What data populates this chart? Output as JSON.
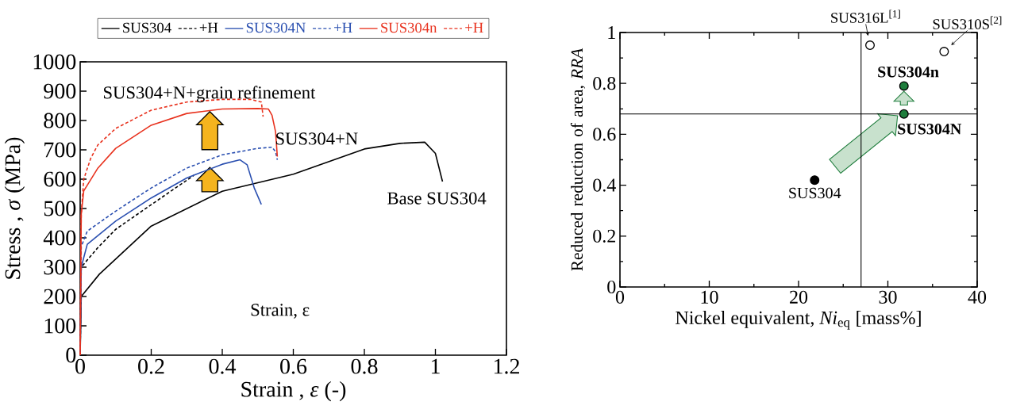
{
  "chart_data": [
    {
      "type": "line",
      "xlabel": "Strain , *ε* (-)",
      "ylabel": "Stress , *σ* (MPa)",
      "legend": "top",
      "xlim": [
        0,
        1.2
      ],
      "ylim": [
        0,
        1000
      ],
      "xticks": [
        0,
        0.2,
        0.4,
        0.6,
        0.8,
        1,
        1.2
      ],
      "yticks": [
        0,
        100,
        200,
        300,
        400,
        500,
        600,
        700,
        800,
        900,
        1000
      ],
      "annotations": [
        "SUS304+N+grain refinement",
        "SUS304+N",
        "Base SUS304",
        "Strain, ε"
      ],
      "series": [
        {
          "name": "SUS304",
          "color": "#000000",
          "line_style": "solid",
          "x": [
            0,
            0.003,
            0.054,
            0.2,
            0.4,
            0.6,
            0.8,
            0.9,
            0.97,
            1.0,
            1.02
          ],
          "values": [
            0,
            200,
            276,
            440,
            559,
            617,
            703,
            722,
            726,
            688,
            592
          ]
        },
        {
          "name": "+H",
          "color": "#000000",
          "line_style": "dashed",
          "x": [
            0,
            0.003,
            0.05,
            0.1,
            0.2,
            0.32
          ],
          "values": [
            0,
            300,
            367,
            429,
            513,
            613
          ]
        },
        {
          "name": "SUS304N",
          "color": "#2a4fb0",
          "line_style": "solid",
          "x": [
            0,
            0.003,
            0.02,
            0.1,
            0.2,
            0.3,
            0.4,
            0.45,
            0.47,
            0.49,
            0.51
          ],
          "values": [
            0,
            300,
            378,
            457,
            536,
            604,
            651,
            666,
            649,
            570,
            514
          ]
        },
        {
          "name": "+H",
          "color": "#2a4fb0",
          "line_style": "dashed",
          "x": [
            0,
            0.003,
            0.02,
            0.1,
            0.2,
            0.3,
            0.4,
            0.5,
            0.54,
            0.55,
            0.555
          ],
          "values": [
            0,
            370,
            423,
            491,
            570,
            638,
            683,
            705,
            709,
            694,
            666
          ]
        },
        {
          "name": "SUS304n",
          "color": "#e8321e",
          "line_style": "solid",
          "x": [
            0,
            0.003,
            0.01,
            0.05,
            0.1,
            0.2,
            0.3,
            0.4,
            0.5,
            0.53,
            0.54,
            0.55,
            0.555
          ],
          "values": [
            0,
            480,
            560,
            638,
            705,
            784,
            824,
            839,
            841,
            839,
            818,
            762,
            677
          ]
        },
        {
          "name": "+H",
          "color": "#e8321e",
          "line_style": "dashed",
          "x": [
            0,
            0.003,
            0.01,
            0.03,
            0.05,
            0.1,
            0.2,
            0.3,
            0.4,
            0.48,
            0.51,
            0.515
          ],
          "values": [
            0,
            480,
            600,
            672,
            717,
            773,
            835,
            863,
            872,
            872,
            863,
            813
          ]
        }
      ]
    },
    {
      "type": "scatter",
      "xlabel": "Nickel equivalent, *Ni*$_{eq}$ [mass%]",
      "ylabel": "Reduced reduction of area, *RRA*",
      "xlim": [
        0,
        40
      ],
      "ylim": [
        0,
        1
      ],
      "xticks": [
        0,
        10,
        20,
        30,
        40
      ],
      "yticks": [
        0,
        0.2,
        0.4,
        0.6,
        0.8,
        1
      ],
      "ref_lines": [
        {
          "axis": "x",
          "value": 27,
          "color": "#000000"
        },
        {
          "axis": "y",
          "value": 0.68,
          "color": "#000000"
        }
      ],
      "annotations": [
        {
          "text": "SUS304",
          "x": 21.8,
          "y": 0.42
        },
        {
          "text": "SUS304N",
          "x": 31.8,
          "y": 0.68
        },
        {
          "text": "SUS304n",
          "x": 31.8,
          "y": 0.79
        },
        {
          "text": "SUS316L$^{[1]}$",
          "x": 28,
          "y": 0.95
        },
        {
          "text": "SUS310S$^{[2]}$",
          "x": 36.3,
          "y": 0.925
        }
      ],
      "series": [
        {
          "color": "#000000",
          "x": [
            21.8
          ],
          "values": [
            0.42
          ]
        },
        {
          "color": "#1e7d3c",
          "x": [
            31.8
          ],
          "values": [
            0.68
          ]
        },
        {
          "color": "#1e7d3c",
          "x": [
            31.8
          ],
          "values": [
            0.79
          ]
        },
        {
          "color": "#ffffff",
          "x": [
            28
          ],
          "values": [
            0.95
          ]
        },
        {
          "color": "#ffffff",
          "x": [
            36.3
          ],
          "values": [
            0.925
          ]
        }
      ]
    }
  ]
}
